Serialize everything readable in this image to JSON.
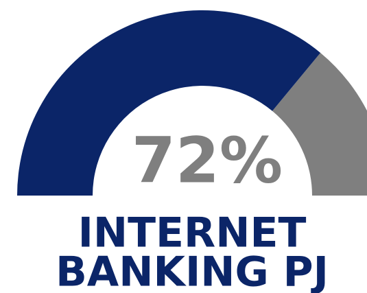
{
  "chart_data": {
    "type": "gauge",
    "title": [
      "INTERNET",
      "BANKING PJ"
    ],
    "values": [
      72
    ],
    "value_labels": [
      "72%"
    ],
    "ylim": [
      0,
      100
    ],
    "color": "#0b2568",
    "track_color": "#7f7f7f",
    "label_color": "#7f7f7f",
    "title_color": "#0b2568"
  }
}
